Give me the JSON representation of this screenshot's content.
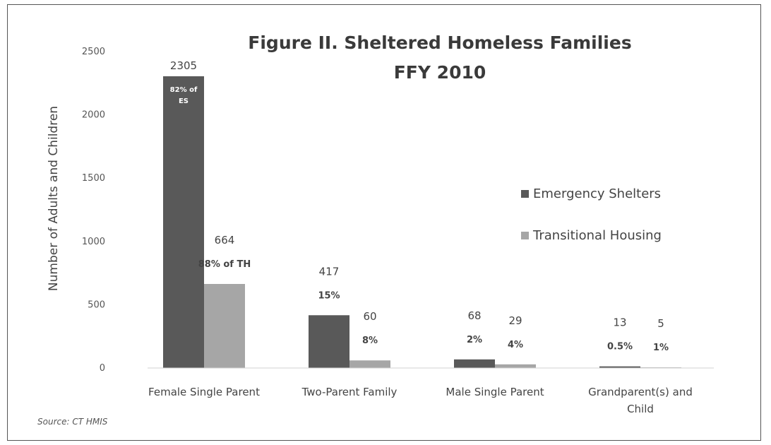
{
  "chart_data": {
    "type": "bar",
    "title": "Figure II.  Sheltered Homeless Families",
    "subtitle": "FFY 2010",
    "xlabel": "",
    "ylabel": "Number of Adults  and Children",
    "ylim": [
      0,
      2500
    ],
    "yticks": [
      0,
      500,
      1000,
      1500,
      2000,
      2500
    ],
    "categories": [
      [
        "Female Single Parent"
      ],
      [
        "Two-Parent Family"
      ],
      [
        "Male Single Parent"
      ],
      [
        "Grandparent(s) and",
        "Child"
      ]
    ],
    "series": [
      {
        "name": "Emergency Shelters",
        "color": "#595959",
        "values": [
          2305,
          417,
          68,
          13
        ],
        "value_labels": [
          "2305",
          "417",
          "68",
          "13"
        ],
        "pct_labels": [
          "82% of ES",
          "15%",
          "2%",
          "0.5%"
        ]
      },
      {
        "name": "Transitional Housing",
        "color": "#a6a6a6",
        "values": [
          664,
          60,
          29,
          5
        ],
        "value_labels": [
          "664",
          "60",
          "29",
          "5"
        ],
        "pct_labels": [
          "88% of TH",
          "8%",
          "4%",
          "1%"
        ]
      }
    ],
    "legend_position": "right",
    "grid": false,
    "source": "Source: CT HMIS"
  }
}
